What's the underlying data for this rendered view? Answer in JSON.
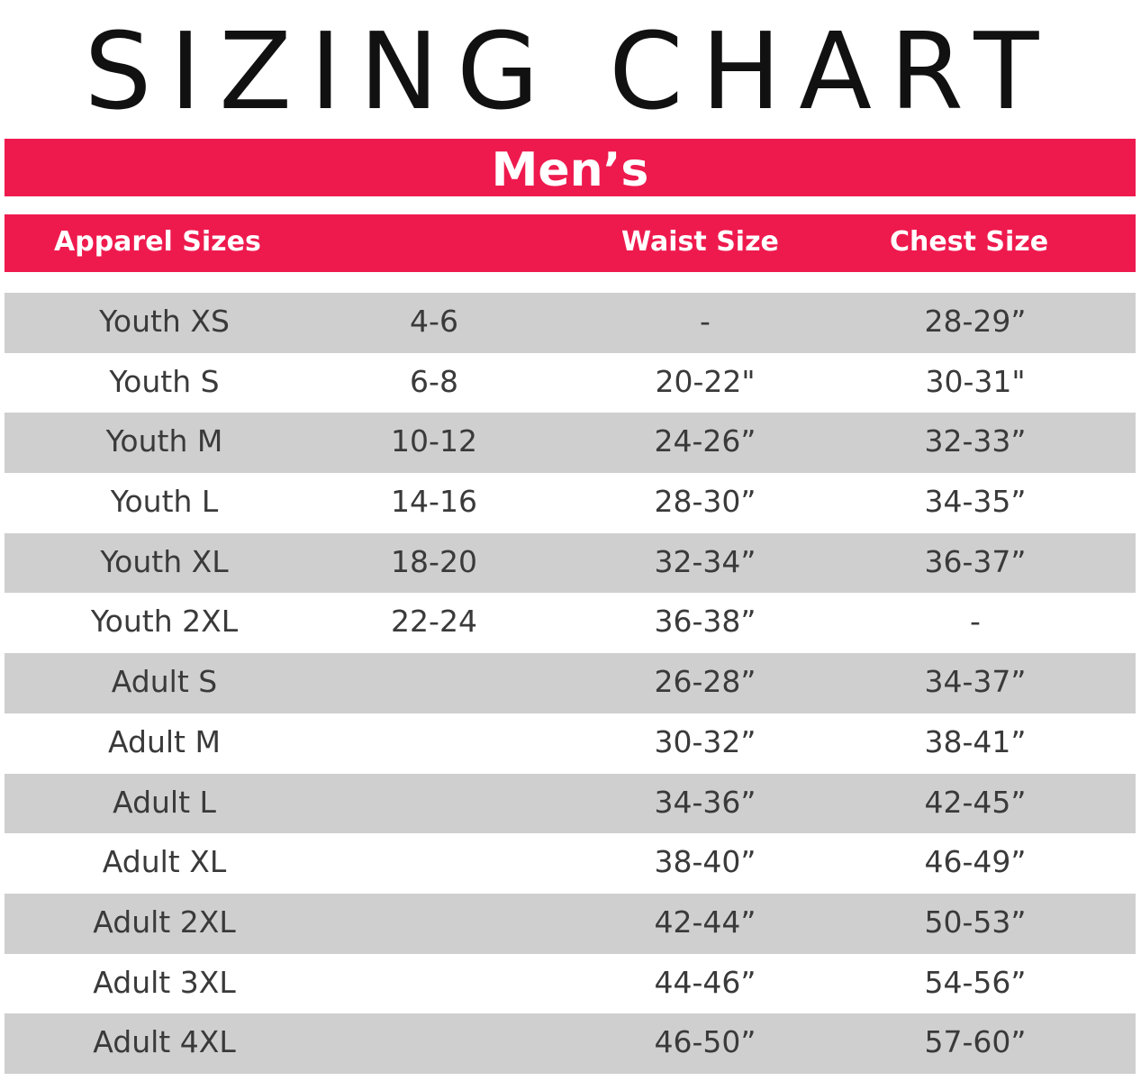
{
  "title": "SIZING CHART",
  "section": "Men’s",
  "accent_color": "#ee1a4e",
  "stripe_color": "#cfcfcf",
  "headers": {
    "apparel": "Apparel Sizes",
    "blank": "",
    "waist": "Waist Size",
    "chest": "Chest Size"
  },
  "rows": [
    {
      "size": "Youth XS",
      "numeric": "4-6",
      "waist": "-",
      "chest": "28-29”"
    },
    {
      "size": "Youth S",
      "numeric": "6-8",
      "waist": "20-22\"",
      "chest": "30-31\""
    },
    {
      "size": "Youth M",
      "numeric": "10-12",
      "waist": "24-26”",
      "chest": "32-33”"
    },
    {
      "size": "Youth L",
      "numeric": "14-16",
      "waist": "28-30”",
      "chest": "34-35”"
    },
    {
      "size": "Youth XL",
      "numeric": "18-20",
      "waist": "32-34”",
      "chest": "36-37”"
    },
    {
      "size": "Youth 2XL",
      "numeric": "22-24",
      "waist": "36-38”",
      "chest": "-"
    },
    {
      "size": "Adult S",
      "numeric": "",
      "waist": "26-28”",
      "chest": "34-37”"
    },
    {
      "size": "Adult M",
      "numeric": "",
      "waist": "30-32”",
      "chest": "38-41”"
    },
    {
      "size": "Adult L",
      "numeric": "",
      "waist": "34-36”",
      "chest": "42-45”"
    },
    {
      "size": "Adult XL",
      "numeric": "",
      "waist": "38-40”",
      "chest": "46-49”"
    },
    {
      "size": "Adult 2XL",
      "numeric": "",
      "waist": "42-44”",
      "chest": "50-53”"
    },
    {
      "size": "Adult 3XL",
      "numeric": "",
      "waist": "44-46”",
      "chest": "54-56”"
    },
    {
      "size": "Adult 4XL",
      "numeric": "",
      "waist": "46-50”",
      "chest": "57-60”"
    }
  ]
}
